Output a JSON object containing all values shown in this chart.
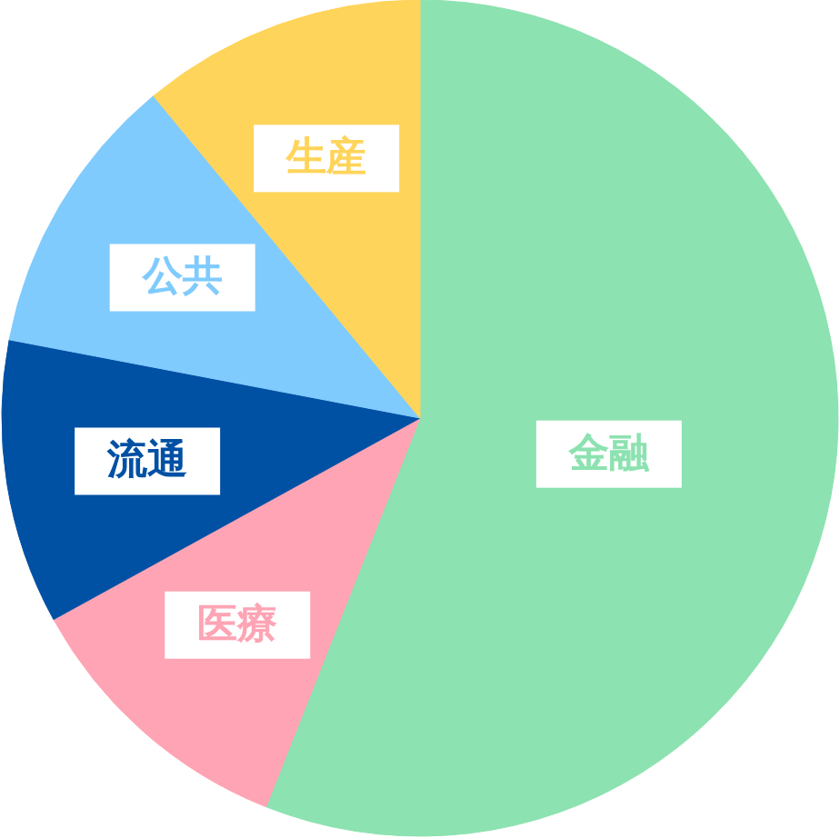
{
  "chart_data": {
    "type": "pie",
    "categories": [
      "金融",
      "医療",
      "流通",
      "公共",
      "生産"
    ],
    "values": [
      56,
      11,
      11,
      11,
      11
    ],
    "colors": [
      "#8ce2b0",
      "#fea4b4",
      "#0050a4",
      "#80cbfd",
      "#ffd45a"
    ]
  }
}
